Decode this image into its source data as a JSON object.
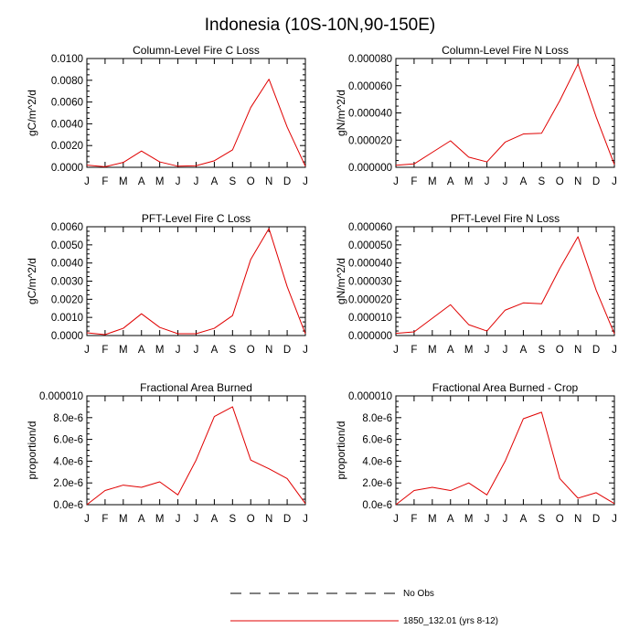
{
  "figure": {
    "title": "Indonesia (10S-10N,90-150E)"
  },
  "chart_data": [
    {
      "type": "line",
      "title": "Column-Level Fire C Loss",
      "ylabel": "gC/m^2/d",
      "categories": [
        "J",
        "F",
        "M",
        "A",
        "M",
        "J",
        "J",
        "A",
        "S",
        "O",
        "N",
        "D",
        "J"
      ],
      "yticks": [
        "0.0000",
        "0.0020",
        "0.0040",
        "0.0060",
        "0.0080",
        "0.0100"
      ],
      "ylim": [
        0,
        0.01
      ],
      "series": [
        {
          "name": "1850_132.01 (yrs 8-12)",
          "color": "#e00000",
          "values": [
            0.0002,
            5e-05,
            0.00045,
            0.0015,
            0.0005,
            0.0001,
            0.00015,
            0.0006,
            0.0016,
            0.0055,
            0.0081,
            0.0037,
            0.0001
          ]
        }
      ]
    },
    {
      "type": "line",
      "title": "Column-Level Fire N Loss",
      "ylabel": "gN/m^2/d",
      "categories": [
        "J",
        "F",
        "M",
        "A",
        "M",
        "J",
        "J",
        "A",
        "S",
        "O",
        "N",
        "D",
        "J"
      ],
      "yticks": [
        "0.000000",
        "0.000020",
        "0.000040",
        "0.000060",
        "0.000080"
      ],
      "ylim": [
        0,
        8e-05
      ],
      "series": [
        {
          "name": "1850_132.01 (yrs 8-12)",
          "color": "#e00000",
          "values": [
            1.5e-06,
            2.5e-06,
            1.1e-05,
            1.95e-05,
            7.5e-06,
            4e-06,
            1.85e-05,
            2.45e-05,
            2.5e-05,
            4.9e-05,
            7.6e-05,
            3.7e-05,
            2e-06
          ]
        }
      ]
    },
    {
      "type": "line",
      "title": "PFT-Level Fire C Loss",
      "ylabel": "gC/m^2/d",
      "categories": [
        "J",
        "F",
        "M",
        "A",
        "M",
        "J",
        "J",
        "A",
        "S",
        "O",
        "N",
        "D",
        "J"
      ],
      "yticks": [
        "0.0000",
        "0.0010",
        "0.0020",
        "0.0030",
        "0.0040",
        "0.0050",
        "0.0060"
      ],
      "ylim": [
        0,
        0.006
      ],
      "series": [
        {
          "name": "1850_132.01 (yrs 8-12)",
          "color": "#e00000",
          "values": [
            0.00015,
            5e-05,
            0.0004,
            0.0012,
            0.00045,
            0.0001,
            0.0001,
            0.0004,
            0.0011,
            0.0042,
            0.0059,
            0.0027,
            0.0001
          ]
        }
      ]
    },
    {
      "type": "line",
      "title": "PFT-Level Fire N Loss",
      "ylabel": "gN/m^2/d",
      "categories": [
        "J",
        "F",
        "M",
        "A",
        "M",
        "J",
        "J",
        "A",
        "S",
        "O",
        "N",
        "D",
        "J"
      ],
      "yticks": [
        "0.000000",
        "0.000010",
        "0.000020",
        "0.000030",
        "0.000040",
        "0.000050",
        "0.000060"
      ],
      "ylim": [
        0,
        6e-05
      ],
      "series": [
        {
          "name": "1850_132.01 (yrs 8-12)",
          "color": "#e00000",
          "values": [
            1.2e-06,
            2e-06,
            9.5e-06,
            1.7e-05,
            6e-06,
            2.5e-06,
            1.4e-05,
            1.8e-05,
            1.75e-05,
            3.7e-05,
            5.45e-05,
            2.5e-05,
            1e-06
          ]
        }
      ]
    },
    {
      "type": "line",
      "title": "Fractional Area Burned",
      "ylabel": "proportion/d",
      "categories": [
        "J",
        "F",
        "M",
        "A",
        "M",
        "J",
        "J",
        "A",
        "S",
        "O",
        "N",
        "D",
        "J"
      ],
      "yticks": [
        "0.0e-6",
        "2.0e-6",
        "4.0e-6",
        "6.0e-6",
        "8.0e-6",
        "0.000010"
      ],
      "ylim": [
        0,
        1e-05
      ],
      "series": [
        {
          "name": "1850_132.01 (yrs 8-12)",
          "color": "#e00000",
          "values": [
            0.0,
            1.3e-06,
            1.8e-06,
            1.6e-06,
            2.1e-06,
            9e-07,
            4.1e-06,
            8.1e-06,
            9e-06,
            4.1e-06,
            3.3e-06,
            2.4e-06,
            1e-07
          ]
        }
      ]
    },
    {
      "type": "line",
      "title": "Fractional Area Burned - Crop",
      "ylabel": "proportion/d",
      "categories": [
        "J",
        "F",
        "M",
        "A",
        "M",
        "J",
        "J",
        "A",
        "S",
        "O",
        "N",
        "D",
        "J"
      ],
      "yticks": [
        "0.0e-6",
        "2.0e-6",
        "4.0e-6",
        "6.0e-6",
        "8.0e-6",
        "0.000010"
      ],
      "ylim": [
        0,
        1e-05
      ],
      "series": [
        {
          "name": "1850_132.01 (yrs 8-12)",
          "color": "#e00000",
          "values": [
            0.0,
            1.3e-06,
            1.6e-06,
            1.3e-06,
            2e-06,
            9e-07,
            4e-06,
            7.9e-06,
            8.5e-06,
            2.4e-06,
            6e-07,
            1.1e-06,
            1e-07
          ]
        }
      ]
    }
  ],
  "legend": {
    "items": [
      {
        "label": "No Obs",
        "style": "dashed",
        "color": "#000000"
      },
      {
        "label": "1850_132.01 (yrs 8-12)",
        "style": "solid",
        "color": "#e00000"
      }
    ]
  }
}
